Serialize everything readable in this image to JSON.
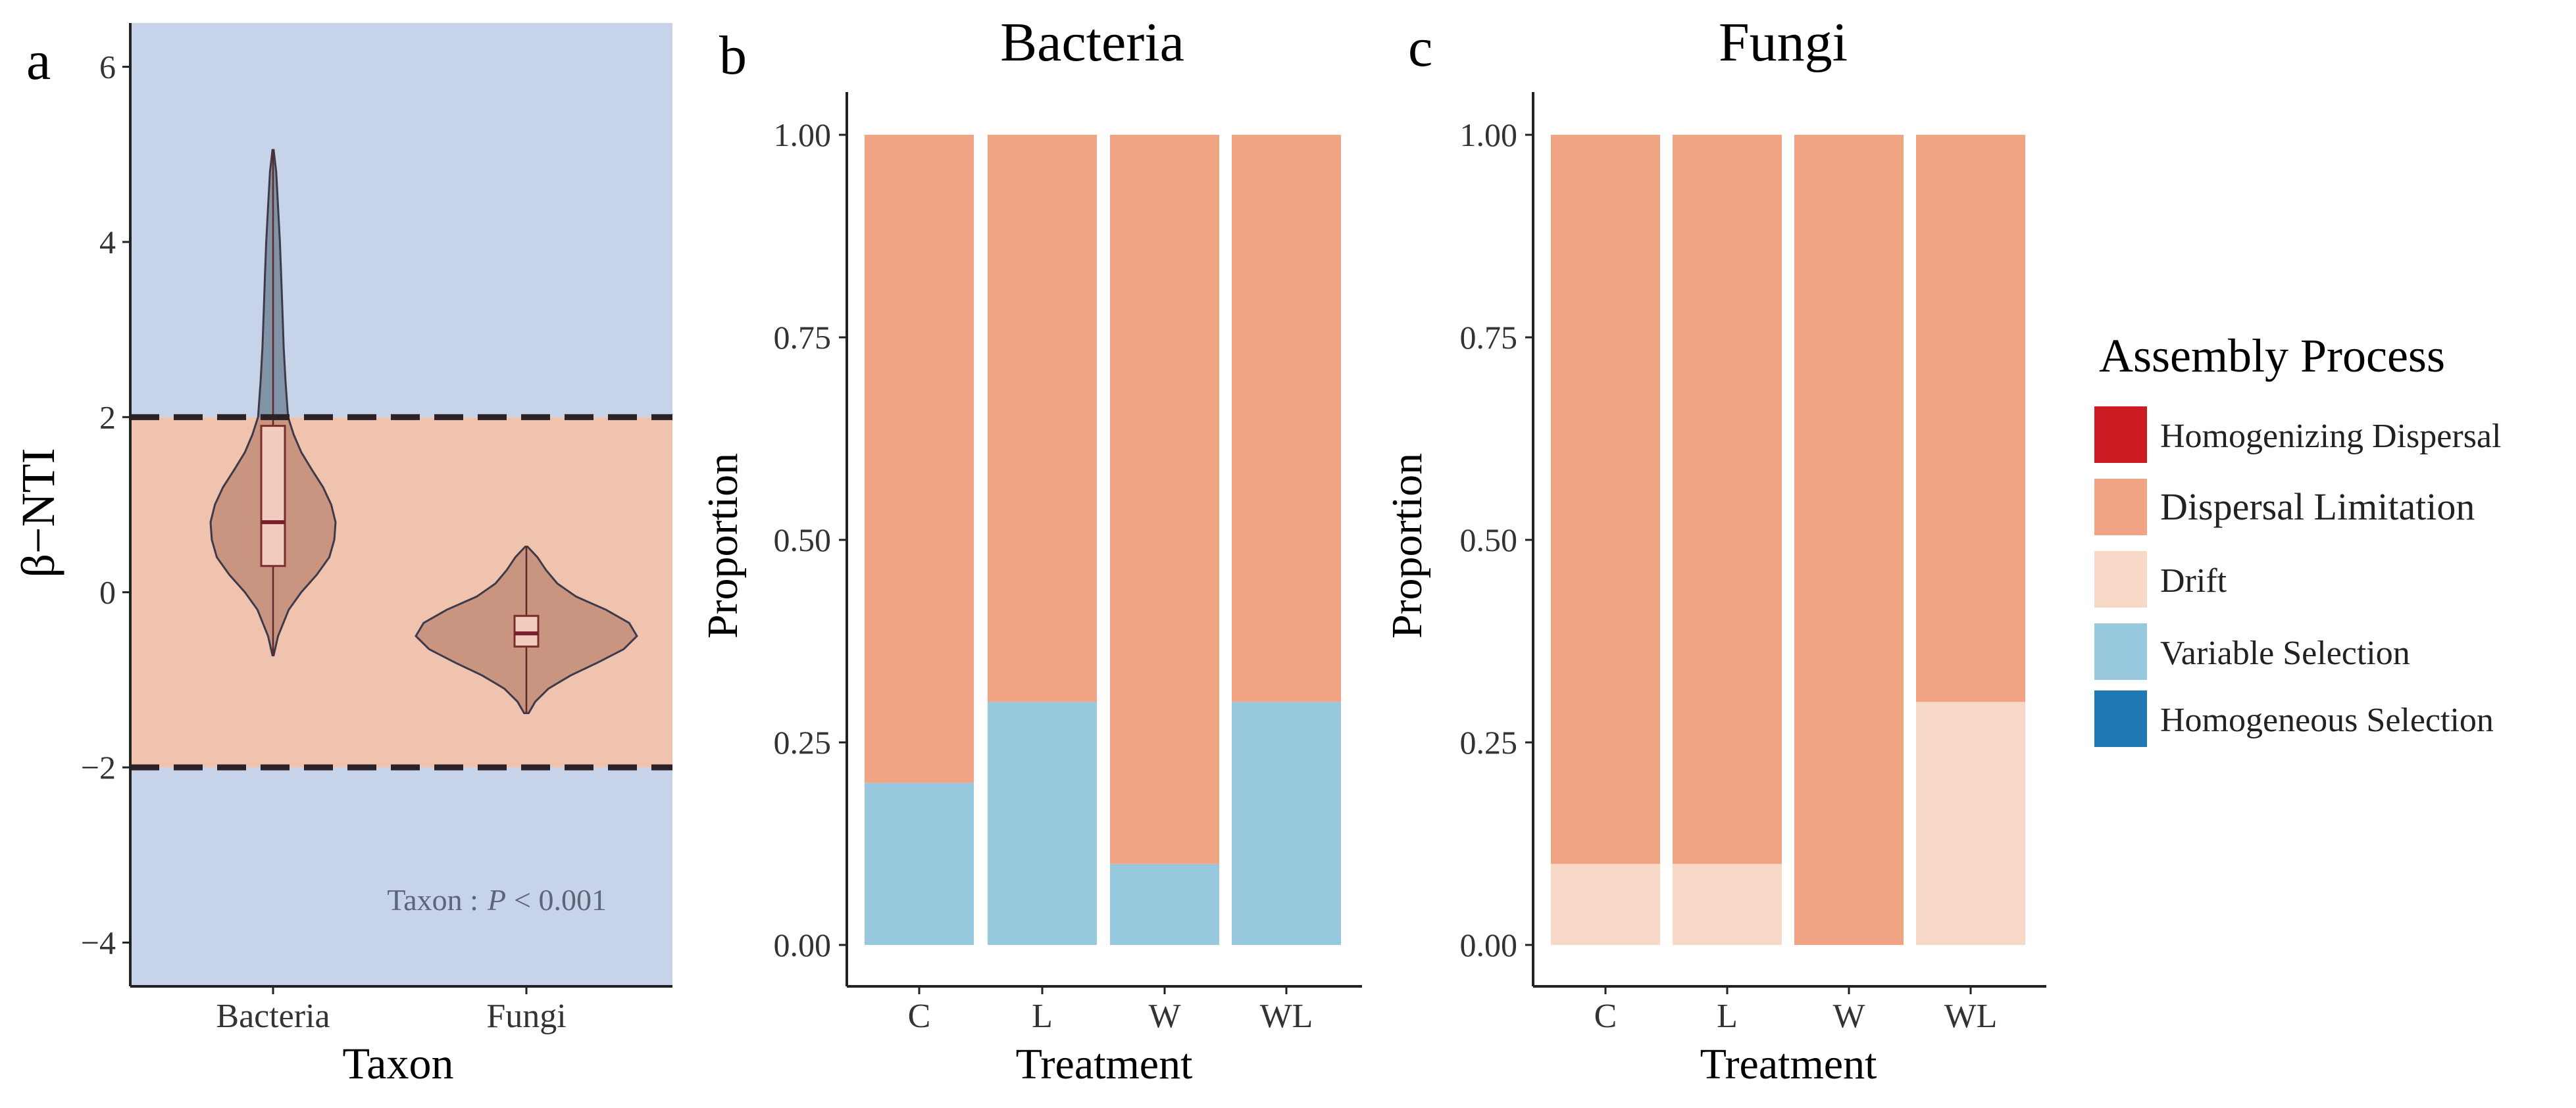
{
  "chart_data": [
    {
      "type": "violin",
      "panel_label": "a",
      "title": "",
      "xlabel": "Taxon",
      "ylabel": "β−NTI",
      "ylim": [
        -4.5,
        6.5
      ],
      "yticks": [
        -4,
        -2,
        0,
        2,
        4,
        6
      ],
      "ytick_labels": [
        "−4",
        "−2",
        "0",
        "2",
        "4",
        "6"
      ],
      "categories": [
        "Bacteria",
        "Fungi"
      ],
      "background_bands": [
        {
          "from": -4.5,
          "to": -2,
          "color": "#c6d3e8"
        },
        {
          "from": -2,
          "to": 2,
          "color": "#efc3ae"
        },
        {
          "from": 2,
          "to": 6.5,
          "color": "#c6d3e8"
        }
      ],
      "reference_lines": [
        -2,
        2
      ],
      "distributions": [
        {
          "name": "Bacteria",
          "min": -0.72,
          "max": 5.05,
          "q1": 0.3,
          "median": 0.8,
          "q3": 1.9,
          "density": [
            [
              -0.72,
              0.01
            ],
            [
              -0.5,
              0.08
            ],
            [
              -0.2,
              0.25
            ],
            [
              0.0,
              0.45
            ],
            [
              0.2,
              0.7
            ],
            [
              0.4,
              0.9
            ],
            [
              0.6,
              0.98
            ],
            [
              0.8,
              1.0
            ],
            [
              1.0,
              0.93
            ],
            [
              1.2,
              0.8
            ],
            [
              1.4,
              0.62
            ],
            [
              1.6,
              0.45
            ],
            [
              1.8,
              0.33
            ],
            [
              2.0,
              0.24
            ],
            [
              2.4,
              0.2
            ],
            [
              2.8,
              0.17
            ],
            [
              3.2,
              0.15
            ],
            [
              3.6,
              0.13
            ],
            [
              4.0,
              0.11
            ],
            [
              4.4,
              0.08
            ],
            [
              4.8,
              0.05
            ],
            [
              5.05,
              0.01
            ]
          ]
        },
        {
          "name": "Fungi",
          "min": -1.38,
          "max": 0.52,
          "q1": -0.62,
          "median": -0.47,
          "q3": -0.27,
          "density": [
            [
              -1.38,
              0.02
            ],
            [
              -1.25,
              0.08
            ],
            [
              -1.1,
              0.2
            ],
            [
              -0.95,
              0.4
            ],
            [
              -0.8,
              0.65
            ],
            [
              -0.65,
              0.88
            ],
            [
              -0.5,
              1.0
            ],
            [
              -0.35,
              0.93
            ],
            [
              -0.2,
              0.72
            ],
            [
              -0.05,
              0.45
            ],
            [
              0.1,
              0.28
            ],
            [
              0.25,
              0.18
            ],
            [
              0.4,
              0.1
            ],
            [
              0.52,
              0.01
            ]
          ]
        }
      ],
      "annotation": {
        "prefix": "Taxon :",
        "p_symbol": "P",
        "text": "< 0.001"
      }
    },
    {
      "type": "stacked_bar",
      "panel_label": "b",
      "title": "Bacteria",
      "xlabel": "Treatment",
      "ylabel": "Proportion",
      "ylim": [
        0,
        1
      ],
      "yticks": [
        "0.00",
        "0.25",
        "0.50",
        "0.75",
        "1.00"
      ],
      "categories": [
        "C",
        "L",
        "W",
        "WL"
      ],
      "series": [
        {
          "name": "Variable Selection",
          "color": "#97c8de",
          "values": [
            0.2,
            0.3,
            0.1,
            0.3
          ]
        },
        {
          "name": "Dispersal Limitation",
          "color": "#f1a483",
          "values": [
            0.8,
            0.7,
            0.9,
            0.7
          ]
        }
      ]
    },
    {
      "type": "stacked_bar",
      "panel_label": "c",
      "title": "Fungi",
      "xlabel": "Treatment",
      "ylabel": "Proportion",
      "ylim": [
        0,
        1
      ],
      "yticks": [
        "0.00",
        "0.25",
        "0.50",
        "0.75",
        "1.00"
      ],
      "categories": [
        "C",
        "L",
        "W",
        "WL"
      ],
      "series": [
        {
          "name": "Drift",
          "color": "#f8d8c7",
          "values": [
            0.1,
            0.1,
            0.0,
            0.3
          ]
        },
        {
          "name": "Dispersal Limitation",
          "color": "#f1a483",
          "values": [
            0.9,
            0.9,
            1.0,
            0.7
          ]
        }
      ]
    }
  ],
  "legend": {
    "title": "Assembly Process",
    "items": [
      {
        "label": "Homogenizing Dispersal",
        "color": "#cc1b23"
      },
      {
        "label": "Dispersal Limitation",
        "color": "#f1a483"
      },
      {
        "label": "Drift",
        "color": "#f8d8c7"
      },
      {
        "label": "Variable Selection",
        "color": "#97c8de"
      },
      {
        "label": "Homogeneous Selection",
        "color": "#1f77b4"
      }
    ]
  }
}
